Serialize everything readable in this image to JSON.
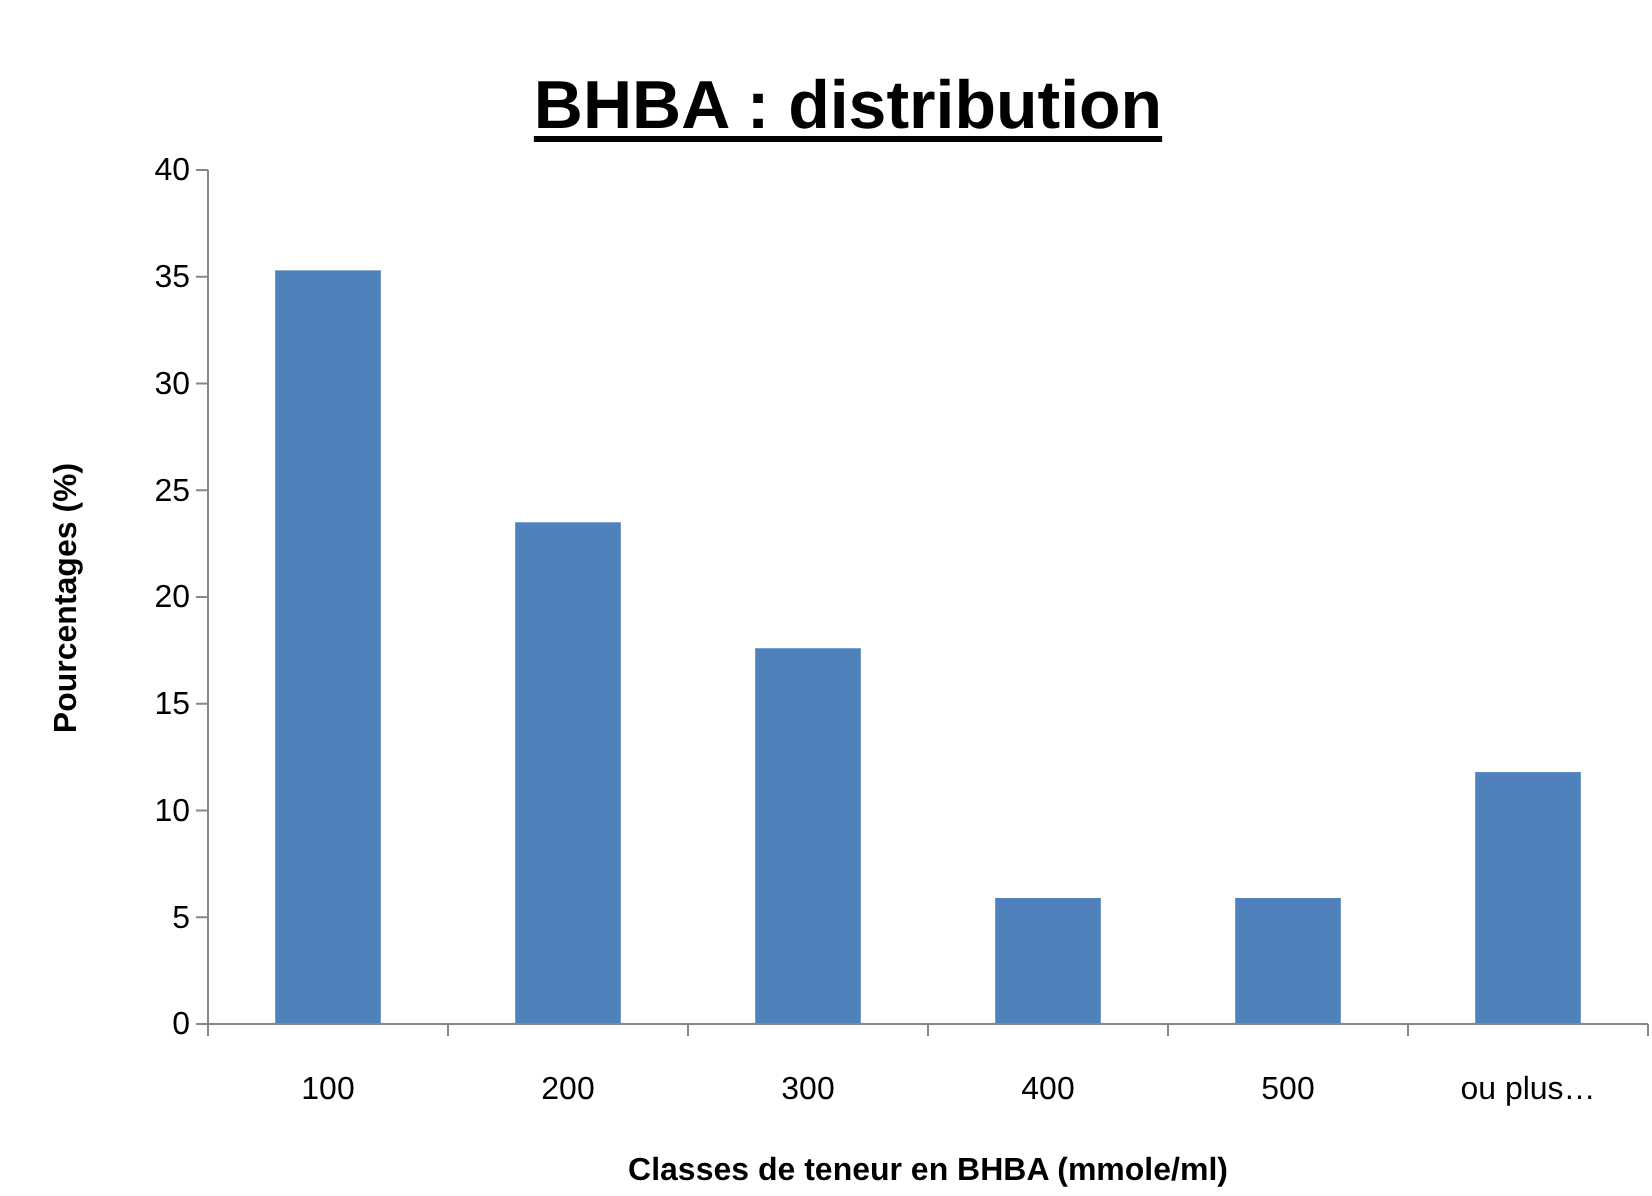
{
  "chart_data": {
    "type": "bar",
    "title": "BHBA : distribution",
    "xlabel": "Classes de teneur en BHBA (mmole/ml)",
    "ylabel": "Pourcentages (%)",
    "categories": [
      "100",
      "200",
      "300",
      "400",
      "500",
      "ou plus…"
    ],
    "values": [
      35.3,
      23.5,
      17.6,
      5.9,
      5.9,
      11.8
    ],
    "color": "#4f81bd",
    "ylim": [
      0,
      40
    ],
    "yticks": [
      0,
      5,
      10,
      15,
      20,
      25,
      30,
      35,
      40
    ],
    "grid": false
  }
}
